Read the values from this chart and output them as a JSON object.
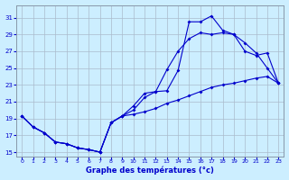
{
  "xlabel": "Graphe des températures (°c)",
  "bg_color": "#cceeff",
  "grid_color": "#aabbcc",
  "line_color": "#0000cc",
  "xlim": [
    -0.5,
    23.5
  ],
  "ylim": [
    14.5,
    32.5
  ],
  "xticks": [
    0,
    1,
    2,
    3,
    4,
    5,
    6,
    7,
    8,
    9,
    10,
    11,
    12,
    13,
    14,
    15,
    16,
    17,
    18,
    19,
    20,
    21,
    22,
    23
  ],
  "yticks": [
    15,
    17,
    19,
    21,
    23,
    25,
    27,
    29,
    31
  ],
  "line1_x": [
    0,
    1,
    2,
    3,
    4,
    5,
    6,
    7,
    8,
    9,
    10,
    11,
    12,
    13,
    14,
    15,
    16,
    17,
    18,
    19,
    20,
    21,
    22,
    23
  ],
  "line1_y": [
    19.3,
    18.0,
    17.3,
    16.2,
    16.0,
    15.5,
    15.3,
    15.0,
    18.5,
    19.3,
    20.0,
    21.5,
    22.2,
    22.3,
    24.7,
    30.5,
    30.5,
    31.2,
    29.5,
    29.0,
    27.0,
    26.5,
    26.8,
    23.2
  ],
  "line2_x": [
    0,
    1,
    2,
    3,
    4,
    5,
    6,
    7,
    8,
    9,
    10,
    11,
    12,
    13,
    14,
    15,
    16,
    17,
    18,
    19,
    20,
    21,
    22,
    23
  ],
  "line2_y": [
    19.3,
    18.0,
    17.3,
    16.2,
    16.0,
    15.5,
    15.3,
    15.0,
    18.5,
    19.3,
    20.5,
    22.0,
    22.2,
    24.8,
    27.0,
    28.5,
    29.2,
    29.0,
    29.2,
    29.0,
    28.0,
    26.8,
    25.0,
    23.2
  ],
  "line3_x": [
    0,
    1,
    2,
    3,
    4,
    5,
    6,
    7,
    8,
    9,
    10,
    11,
    12,
    13,
    14,
    15,
    16,
    17,
    18,
    19,
    20,
    21,
    22,
    23
  ],
  "line3_y": [
    19.3,
    18.0,
    17.3,
    16.2,
    16.0,
    15.5,
    15.3,
    15.0,
    18.5,
    19.3,
    19.5,
    19.8,
    20.2,
    20.8,
    21.2,
    21.7,
    22.2,
    22.7,
    23.0,
    23.2,
    23.5,
    23.8,
    24.0,
    23.2
  ]
}
